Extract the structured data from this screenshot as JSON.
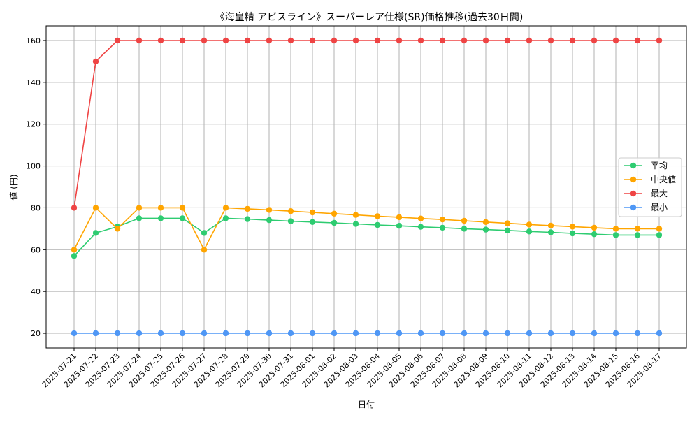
{
  "chart_data": {
    "type": "line",
    "title": "《海皇精 アビスライン》スーパーレア仕様(SR)価格推移(過去30日間)",
    "xlabel": "日付",
    "ylabel": "値 (円)",
    "ylim": [
      13,
      167
    ],
    "yticks": [
      20,
      40,
      60,
      80,
      100,
      120,
      140,
      160
    ],
    "grid": true,
    "legend_position": "center-right",
    "categories": [
      "2025-07-21",
      "2025-07-22",
      "2025-07-23",
      "2025-07-24",
      "2025-07-25",
      "2025-07-26",
      "2025-07-27",
      "2025-07-28",
      "2025-07-29",
      "2025-07-30",
      "2025-07-31",
      "2025-08-01",
      "2025-08-02",
      "2025-08-03",
      "2025-08-04",
      "2025-08-05",
      "2025-08-06",
      "2025-08-07",
      "2025-08-08",
      "2025-08-09",
      "2025-08-10",
      "2025-08-11",
      "2025-08-12",
      "2025-08-13",
      "2025-08-14",
      "2025-08-15",
      "2025-08-16",
      "2025-08-17"
    ],
    "series": [
      {
        "name": "平均",
        "color": "#2ecc71",
        "values": [
          57,
          68,
          71,
          75,
          75,
          75,
          68,
          75,
          74.6,
          74.1,
          73.6,
          73.2,
          72.8,
          72.3,
          71.8,
          71.4,
          70.9,
          70.5,
          70.0,
          69.6,
          69.2,
          68.7,
          68.3,
          67.8,
          67.4,
          67.0,
          67.0,
          67.0
        ]
      },
      {
        "name": "中央値",
        "color": "#ffa500",
        "values": [
          60,
          80,
          70,
          80,
          80,
          80,
          60,
          80,
          79.5,
          79.0,
          78.4,
          77.8,
          77.2,
          76.6,
          76.0,
          75.5,
          74.9,
          74.4,
          73.8,
          73.2,
          72.6,
          72.0,
          71.5,
          71.0,
          70.5,
          70.0,
          70.0,
          70.0
        ]
      },
      {
        "name": "最大",
        "color": "#ef4444",
        "values": [
          80,
          150,
          160,
          160,
          160,
          160,
          160,
          160,
          160,
          160,
          160,
          160,
          160,
          160,
          160,
          160,
          160,
          160,
          160,
          160,
          160,
          160,
          160,
          160,
          160,
          160,
          160,
          160
        ]
      },
      {
        "name": "最小",
        "color": "#4f97f5",
        "values": [
          20,
          20,
          20,
          20,
          20,
          20,
          20,
          20,
          20,
          20,
          20,
          20,
          20,
          20,
          20,
          20,
          20,
          20,
          20,
          20,
          20,
          20,
          20,
          20,
          20,
          20,
          20,
          20
        ]
      }
    ]
  }
}
